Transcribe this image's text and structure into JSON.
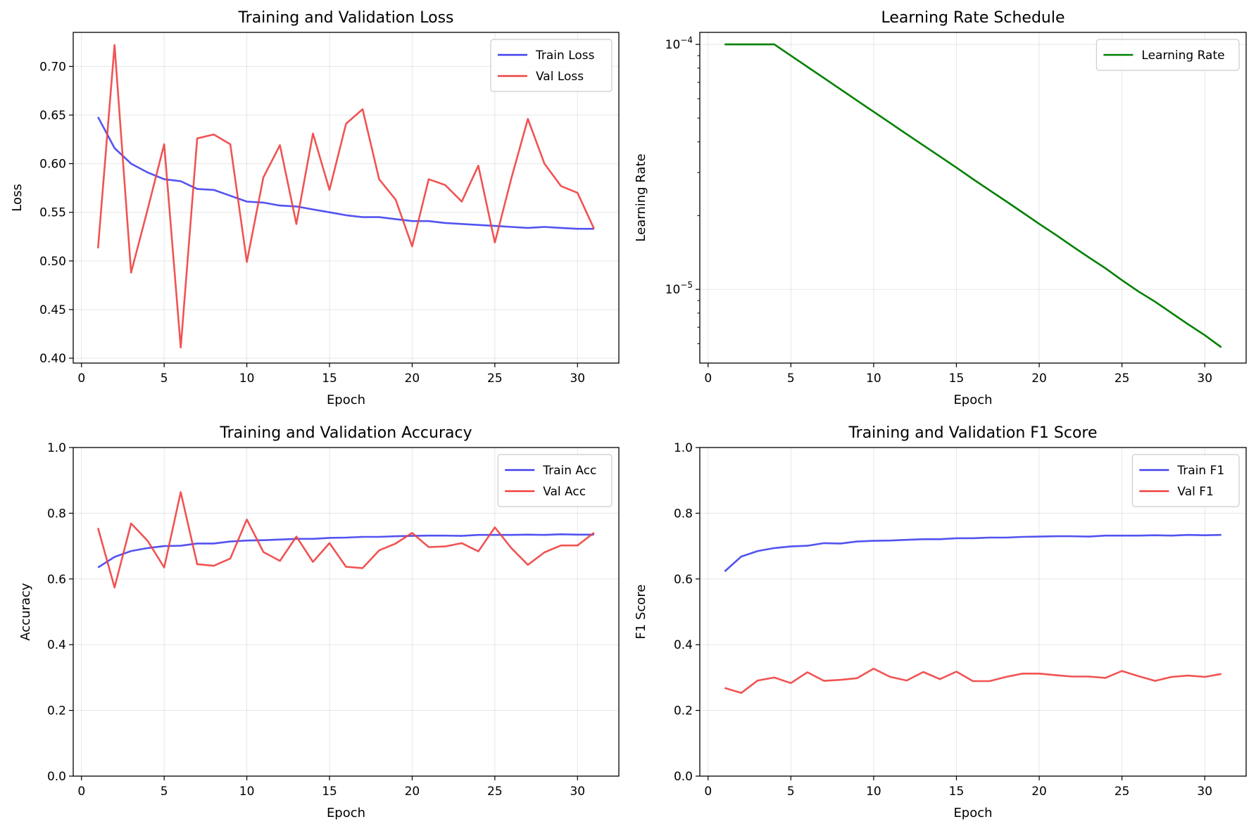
{
  "chart_data": [
    {
      "id": "loss",
      "type": "line",
      "title": "Training and Validation Loss",
      "xlabel": "Epoch",
      "ylabel": "Loss",
      "xlim": [
        -0.5,
        32.5
      ],
      "ylim": [
        0.395,
        0.735
      ],
      "xticks": [
        0,
        5,
        10,
        15,
        20,
        25,
        30
      ],
      "yticks": [
        0.4,
        0.45,
        0.5,
        0.55,
        0.6,
        0.65,
        0.7
      ],
      "ytick_labels": [
        "0.40",
        "0.45",
        "0.50",
        "0.55",
        "0.60",
        "0.65",
        "0.70"
      ],
      "yscale": "linear",
      "grid": true,
      "legend": "top-right",
      "x": [
        1,
        2,
        3,
        4,
        5,
        6,
        7,
        8,
        9,
        10,
        11,
        12,
        13,
        14,
        15,
        16,
        17,
        18,
        19,
        20,
        21,
        22,
        23,
        24,
        25,
        26,
        27,
        28,
        29,
        30,
        31
      ],
      "series": [
        {
          "name": "Train Loss",
          "color": "#4040f0",
          "values": [
            0.648,
            0.616,
            0.6,
            0.591,
            0.584,
            0.582,
            0.574,
            0.573,
            0.567,
            0.561,
            0.56,
            0.557,
            0.556,
            0.553,
            0.55,
            0.547,
            0.545,
            0.545,
            0.543,
            0.541,
            0.541,
            0.539,
            0.538,
            0.537,
            0.536,
            0.535,
            0.534,
            0.535,
            0.534,
            0.533,
            0.533
          ]
        },
        {
          "name": "Val Loss",
          "color": "#f04040",
          "values": [
            0.513,
            0.722,
            0.488,
            0.553,
            0.62,
            0.411,
            0.626,
            0.63,
            0.62,
            0.499,
            0.586,
            0.619,
            0.538,
            0.631,
            0.573,
            0.641,
            0.656,
            0.584,
            0.563,
            0.515,
            0.584,
            0.578,
            0.561,
            0.598,
            0.519,
            0.585,
            0.646,
            0.6,
            0.577,
            0.57,
            0.533
          ]
        }
      ]
    },
    {
      "id": "lr",
      "type": "line",
      "title": "Learning Rate Schedule",
      "xlabel": "Epoch",
      "ylabel": "Learning Rate",
      "xlim": [
        -0.5,
        32.5
      ],
      "ylim": [
        5e-06,
        0.000112
      ],
      "xticks": [
        0,
        5,
        10,
        15,
        20,
        25,
        30
      ],
      "yscale": "log",
      "yticks_major": [
        1e-05,
        0.0001
      ],
      "ytick_labels": [
        {
          "base": "10",
          "exp": "−5"
        },
        {
          "base": "10",
          "exp": "−4"
        }
      ],
      "yticks_minor": [
        6e-06,
        7e-06,
        8e-06,
        9e-06,
        2e-05,
        3e-05,
        4e-05,
        5e-05,
        6e-05,
        7e-05,
        8e-05,
        9e-05
      ],
      "grid": true,
      "legend": "top-right",
      "x": [
        1,
        2,
        3,
        4,
        5,
        6,
        7,
        8,
        9,
        10,
        11,
        12,
        13,
        14,
        15,
        16,
        17,
        18,
        19,
        20,
        21,
        22,
        23,
        24,
        25,
        26,
        27,
        28,
        29,
        30,
        31
      ],
      "series": [
        {
          "name": "Learning Rate",
          "color": "#008000",
          "values": [
            0.0001,
            0.0001,
            0.0001,
            0.0001,
            9e-05,
            8.1e-05,
            7.29e-05,
            6.56e-05,
            5.9e-05,
            5.31e-05,
            4.78e-05,
            4.3e-05,
            3.87e-05,
            3.49e-05,
            3.14e-05,
            2.82e-05,
            2.54e-05,
            2.29e-05,
            2.06e-05,
            1.85e-05,
            1.67e-05,
            1.5e-05,
            1.35e-05,
            1.22e-05,
            1.09e-05,
            9.8e-06,
            8.9e-06,
            8e-06,
            7.2e-06,
            6.5e-06,
            5.8e-06
          ]
        }
      ]
    },
    {
      "id": "acc",
      "type": "line",
      "title": "Training and Validation Accuracy",
      "xlabel": "Epoch",
      "ylabel": "Accuracy",
      "xlim": [
        -0.5,
        32.5
      ],
      "ylim": [
        0,
        1
      ],
      "xticks": [
        0,
        5,
        10,
        15,
        20,
        25,
        30
      ],
      "yticks": [
        0.0,
        0.2,
        0.4,
        0.6,
        0.8,
        1.0
      ],
      "ytick_labels": [
        "0.0",
        "0.2",
        "0.4",
        "0.6",
        "0.8",
        "1.0"
      ],
      "yscale": "linear",
      "grid": true,
      "legend": "top-right",
      "x": [
        1,
        2,
        3,
        4,
        5,
        6,
        7,
        8,
        9,
        10,
        11,
        12,
        13,
        14,
        15,
        16,
        17,
        18,
        19,
        20,
        21,
        22,
        23,
        24,
        25,
        26,
        27,
        28,
        29,
        30,
        31
      ],
      "series": [
        {
          "name": "Train Acc",
          "color": "#4040f0",
          "values": [
            0.635,
            0.667,
            0.685,
            0.694,
            0.7,
            0.701,
            0.708,
            0.708,
            0.714,
            0.717,
            0.718,
            0.72,
            0.722,
            0.722,
            0.725,
            0.726,
            0.728,
            0.728,
            0.73,
            0.731,
            0.732,
            0.732,
            0.731,
            0.734,
            0.734,
            0.734,
            0.735,
            0.734,
            0.736,
            0.735,
            0.735
          ]
        },
        {
          "name": "Val Acc",
          "color": "#f04040",
          "values": [
            0.755,
            0.574,
            0.769,
            0.716,
            0.635,
            0.864,
            0.645,
            0.64,
            0.662,
            0.781,
            0.682,
            0.655,
            0.729,
            0.652,
            0.709,
            0.637,
            0.633,
            0.687,
            0.708,
            0.74,
            0.697,
            0.699,
            0.709,
            0.684,
            0.757,
            0.694,
            0.643,
            0.681,
            0.702,
            0.702,
            0.741
          ]
        }
      ]
    },
    {
      "id": "f1",
      "type": "line",
      "title": "Training and Validation F1 Score",
      "xlabel": "Epoch",
      "ylabel": "F1 Score",
      "xlim": [
        -0.5,
        32.5
      ],
      "ylim": [
        0,
        1
      ],
      "xticks": [
        0,
        5,
        10,
        15,
        20,
        25,
        30
      ],
      "yticks": [
        0.0,
        0.2,
        0.4,
        0.6,
        0.8,
        1.0
      ],
      "ytick_labels": [
        "0.0",
        "0.2",
        "0.4",
        "0.6",
        "0.8",
        "1.0"
      ],
      "yscale": "linear",
      "grid": true,
      "legend": "top-right",
      "x": [
        1,
        2,
        3,
        4,
        5,
        6,
        7,
        8,
        9,
        10,
        11,
        12,
        13,
        14,
        15,
        16,
        17,
        18,
        19,
        20,
        21,
        22,
        23,
        24,
        25,
        26,
        27,
        28,
        29,
        30,
        31
      ],
      "series": [
        {
          "name": "Train F1",
          "color": "#4040f0",
          "values": [
            0.623,
            0.668,
            0.685,
            0.694,
            0.699,
            0.701,
            0.709,
            0.708,
            0.714,
            0.716,
            0.717,
            0.719,
            0.721,
            0.721,
            0.724,
            0.724,
            0.726,
            0.726,
            0.728,
            0.729,
            0.73,
            0.73,
            0.729,
            0.732,
            0.732,
            0.732,
            0.733,
            0.732,
            0.734,
            0.733,
            0.734
          ]
        },
        {
          "name": "Val F1",
          "color": "#f04040",
          "values": [
            0.268,
            0.253,
            0.291,
            0.3,
            0.283,
            0.316,
            0.29,
            0.293,
            0.298,
            0.327,
            0.302,
            0.291,
            0.317,
            0.295,
            0.318,
            0.289,
            0.289,
            0.302,
            0.312,
            0.312,
            0.307,
            0.303,
            0.303,
            0.299,
            0.32,
            0.304,
            0.29,
            0.302,
            0.306,
            0.302,
            0.311
          ]
        }
      ]
    }
  ]
}
